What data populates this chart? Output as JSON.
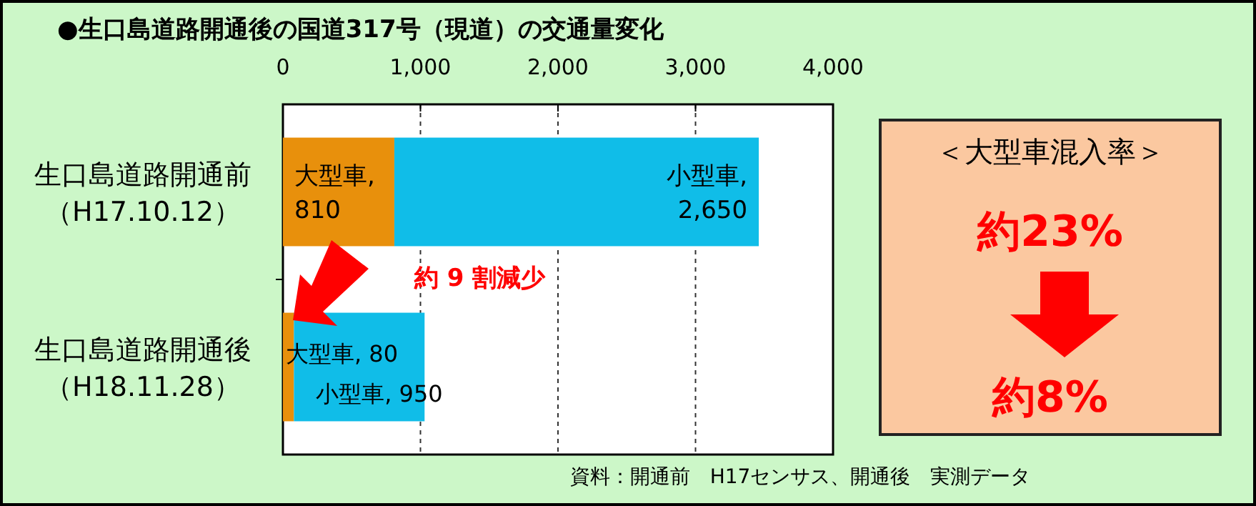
{
  "chart_data": {
    "type": "bar",
    "orientation": "horizontal",
    "stacked": true,
    "title": "●生口島道路開通後の国道317号（現道）の交通量変化",
    "categories": [
      "生口島道路開通前（H17.10.12）",
      "生口島道路開通後（H18.11.28）"
    ],
    "series": [
      {
        "color": "#e8900c",
        "values": [
          810,
          80
        ],
        "value_labels": [
          "大型車, 810",
          "大型車, 80"
        ]
      },
      {
        "color": "#10bde8",
        "values": [
          2650,
          950
        ],
        "value_labels": [
          "小型車, 2,650",
          "小型車, 950"
        ]
      }
    ],
    "xlim": [
      0,
      4000
    ],
    "xticks": [
      0,
      {
        "value": 1000,
        "label": "1,000"
      },
      {
        "value": 2000,
        "label": "2,000"
      },
      {
        "value": 3000,
        "label": "3,000"
      },
      {
        "value": 4000,
        "label": "4,000"
      }
    ],
    "grid": "x",
    "annotations": [
      "約 9 割減少",
      "＜大型車混入率＞",
      "約23%",
      "約8%",
      "資料：開通前　H17センサス、開通後　実測データ"
    ]
  }
}
